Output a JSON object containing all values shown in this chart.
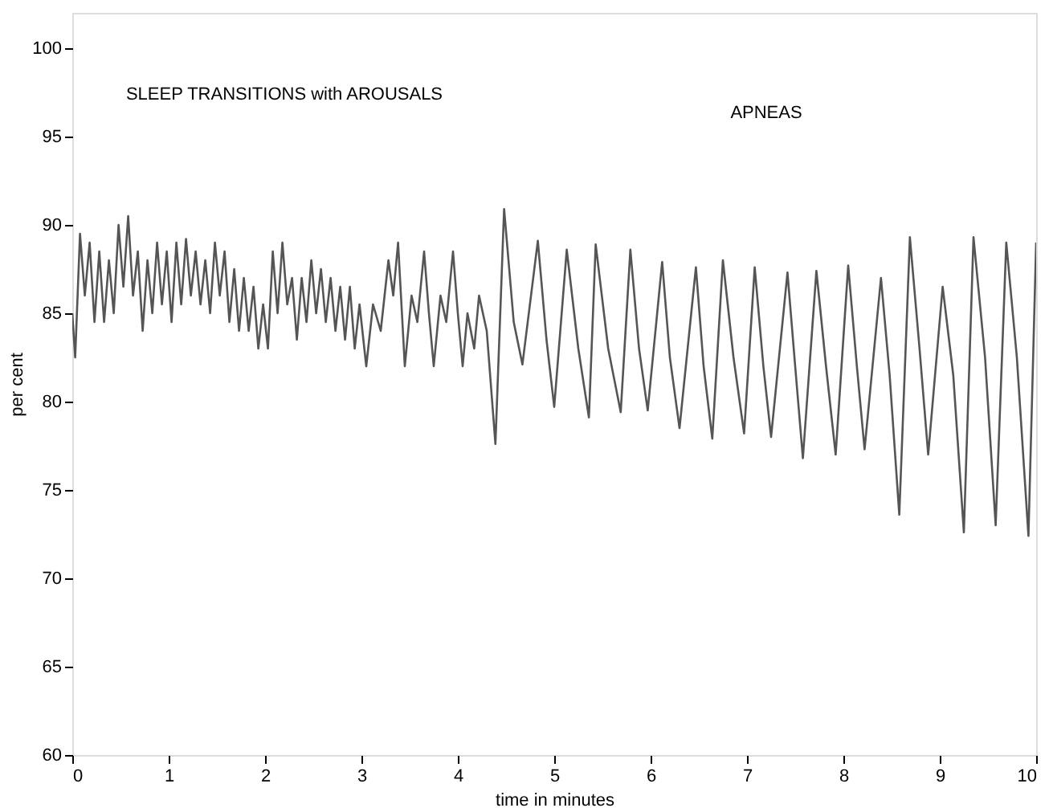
{
  "chart_data": {
    "type": "line",
    "xlabel": "time in minutes",
    "ylabel": "per cent",
    "xlim": [
      0,
      10
    ],
    "xticks": [
      0,
      1,
      2,
      3,
      4,
      5,
      6,
      7,
      8,
      9,
      10
    ],
    "ylim": [
      60,
      102
    ],
    "yticks": [
      60,
      65,
      70,
      75,
      80,
      85,
      90,
      95,
      100
    ],
    "grid": false,
    "marker": "none",
    "line_style": "solid",
    "annotations": [
      "SLEEP TRANSITIONS with AROUSALS",
      "APNEAS"
    ],
    "series": [
      {
        "color": "#555555",
        "x": [
          0.0,
          0.03,
          0.08,
          0.13,
          0.18,
          0.23,
          0.28,
          0.33,
          0.38,
          0.43,
          0.48,
          0.53,
          0.58,
          0.63,
          0.68,
          0.73,
          0.78,
          0.83,
          0.88,
          0.93,
          0.98,
          1.03,
          1.08,
          1.13,
          1.18,
          1.23,
          1.28,
          1.33,
          1.38,
          1.43,
          1.48,
          1.53,
          1.58,
          1.63,
          1.68,
          1.73,
          1.78,
          1.83,
          1.88,
          1.93,
          1.98,
          2.03,
          2.08,
          2.13,
          2.18,
          2.23,
          2.28,
          2.33,
          2.38,
          2.43,
          2.48,
          2.53,
          2.58,
          2.63,
          2.68,
          2.73,
          2.78,
          2.83,
          2.88,
          2.93,
          2.98,
          3.05,
          3.12,
          3.2,
          3.28,
          3.33,
          3.38,
          3.45,
          3.52,
          3.58,
          3.65,
          3.7,
          3.75,
          3.82,
          3.88,
          3.95,
          4.0,
          4.05,
          4.1,
          4.17,
          4.22,
          4.3,
          4.39,
          4.48,
          4.58,
          4.67,
          4.83,
          4.92,
          5.0,
          5.13,
          5.25,
          5.36,
          5.43,
          5.56,
          5.69,
          5.79,
          5.88,
          5.97,
          6.12,
          6.2,
          6.3,
          6.47,
          6.55,
          6.64,
          6.75,
          6.86,
          6.97,
          7.08,
          7.17,
          7.25,
          7.42,
          7.5,
          7.58,
          7.72,
          7.82,
          7.92,
          8.05,
          8.14,
          8.22,
          8.39,
          8.48,
          8.58,
          8.69,
          8.79,
          8.88,
          9.03,
          9.14,
          9.25,
          9.35,
          9.47,
          9.58,
          9.69,
          9.8,
          9.92,
          10.0
        ],
        "values": [
          85,
          82.5,
          89.5,
          86,
          89,
          84.5,
          88.5,
          84.5,
          88,
          85,
          90,
          86.5,
          90.5,
          86,
          88.5,
          84,
          88,
          85,
          89,
          85.5,
          88.5,
          84.5,
          89,
          85.5,
          89.2,
          86,
          88.5,
          85.5,
          88,
          85,
          89,
          86,
          88.5,
          84.5,
          87.5,
          84,
          87,
          84,
          86.5,
          83,
          85.5,
          83,
          88.5,
          85,
          89,
          85.5,
          87,
          83.5,
          87,
          84.5,
          88,
          85,
          87.5,
          84.5,
          87,
          84,
          86.5,
          83.5,
          86.5,
          83,
          85.5,
          82,
          85.5,
          84,
          88,
          86,
          89,
          82,
          86,
          84.5,
          88.5,
          85,
          82,
          86,
          84.5,
          88.5,
          85,
          82,
          85,
          83,
          86,
          84,
          77.6,
          90.9,
          84.5,
          82.1,
          89.1,
          83.5,
          79.7,
          88.6,
          83,
          79.1,
          88.9,
          83,
          79.4,
          88.6,
          83,
          79.5,
          87.9,
          82.5,
          78.5,
          87.6,
          82,
          77.9,
          88,
          82.5,
          78.2,
          87.6,
          82,
          78,
          87.3,
          82,
          76.8,
          87.4,
          82,
          77,
          87.7,
          82,
          77.3,
          87,
          81.5,
          73.6,
          89.3,
          83,
          77,
          86.5,
          81.5,
          72.6,
          89.3,
          82.5,
          73,
          89,
          82.5,
          72.4,
          89
        ]
      }
    ]
  }
}
